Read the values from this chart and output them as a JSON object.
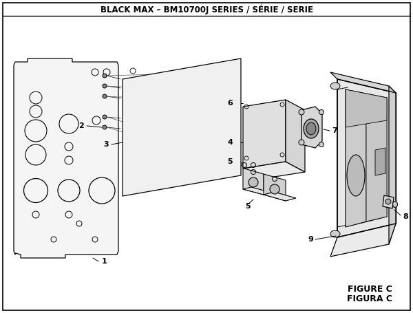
{
  "title": "BLACK MAX – BM10700J SERIES / SÉRIE / SERIE",
  "figure_label": "FIGURE C",
  "figura_label": "FIGURA C",
  "bg_color": "#ffffff",
  "line_color": "#000000",
  "text_color": "#000000",
  "title_fontsize": 8.5,
  "label_fontsize": 8,
  "figure_label_fontsize": 9
}
